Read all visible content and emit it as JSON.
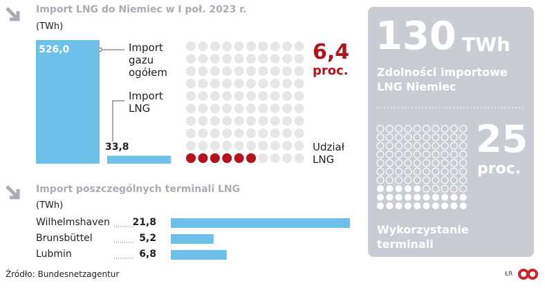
{
  "chart_data": [
    {
      "type": "bar",
      "title": "Import LNG do Niemiec w I poł. 2023 r.",
      "unit": "(TWh)",
      "categories": [
        "Import gazu ogółem",
        "Import LNG"
      ],
      "values": [
        526.0,
        33.8
      ],
      "value_labels": [
        "526,0",
        "33,8"
      ],
      "color": "#6cc0ea"
    },
    {
      "type": "waffle",
      "values": [
        6.4
      ],
      "value_labels": [
        "6,4"
      ],
      "unit": "proc.",
      "label": "Udział LNG",
      "color": "#b5121b"
    },
    {
      "type": "hbar",
      "title": "Import poszczególnych terminali LNG",
      "unit": "(TWh)",
      "categories": [
        "Wilhelmshaven",
        "Brunsbüttel",
        "Lubmin"
      ],
      "values": [
        21.8,
        5.2,
        6.8
      ],
      "value_labels": [
        "21,8",
        "5,2",
        "6,8"
      ],
      "color": "#6cc0ea"
    },
    {
      "type": "waffle",
      "capacity": 130,
      "capacity_unit": "TWh",
      "capacity_label": "Zdolności importowe LNG Niemiec",
      "values": [
        25
      ],
      "unit": "proc.",
      "label": "Wykorzystanie terminali",
      "color": "#ffffff"
    }
  ],
  "source": "Źródło: Bundesnetzagentur",
  "logo": "ŁR"
}
